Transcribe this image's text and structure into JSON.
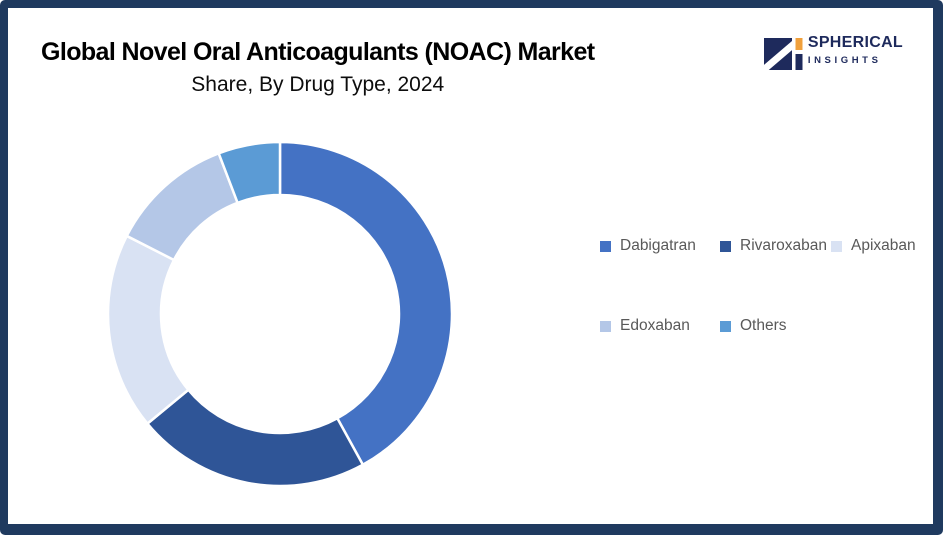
{
  "header": {
    "title": "Global Novel Oral Anticoagulants (NOAC) Market",
    "subtitle": "Share, By Drug Type, 2024"
  },
  "logo": {
    "brand_top": "SPHERICAL",
    "brand_bottom": "INSIGHTS",
    "navy": "#1E2A5C",
    "orange": "#F0A03C"
  },
  "frame": {
    "border_color": "#1F3A5F",
    "background": "#FFFFFF"
  },
  "legend_text_color": "#595959",
  "chart_data": {
    "type": "pie",
    "subtype": "donut",
    "title": "Global Novel Oral Anticoagulants (NOAC) Market Share, By Drug Type, 2024",
    "unit": "% market share (estimated from arc angles; no data labels shown)",
    "categories": [
      "Dabigatran",
      "Rivaroxaban",
      "Apixaban",
      "Edoxaban",
      "Others"
    ],
    "values": [
      42.0,
      22.0,
      18.5,
      11.7,
      5.8
    ],
    "colors": [
      "#4472C4",
      "#2F5597",
      "#D9E2F3",
      "#B4C7E7",
      "#5B9BD5"
    ],
    "start_angle_deg": 0,
    "direction": "clockwise",
    "donut_hole_ratio": 0.69,
    "separator_color": "#FFFFFF",
    "data_labels": false,
    "legend_position": "right",
    "legend_rows": [
      [
        "Dabigatran",
        "Rivaroxaban",
        "Apixaban"
      ],
      [
        "Edoxaban",
        "Others"
      ]
    ]
  }
}
